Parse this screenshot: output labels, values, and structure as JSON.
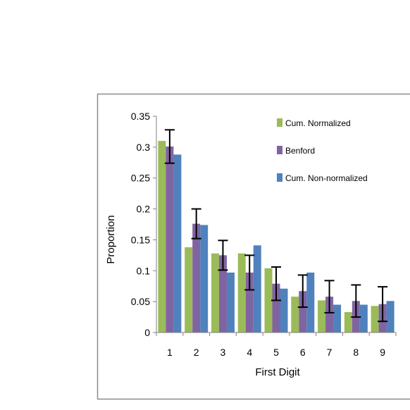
{
  "chart_data": {
    "type": "bar",
    "title": "",
    "xlabel": "First Digit",
    "ylabel": "Proportion",
    "categories": [
      "1",
      "2",
      "3",
      "4",
      "5",
      "6",
      "7",
      "8",
      "9"
    ],
    "ylim": [
      0,
      0.35
    ],
    "yticks": [
      "0",
      "0.05",
      "0.1",
      "0.15",
      "0.2",
      "0.25",
      "0.3",
      "0.35"
    ],
    "grid": false,
    "legend_position": "top-right",
    "series": [
      {
        "name": "Cum. Normalized",
        "color": "#9bbb59",
        "values": [
          0.31,
          0.138,
          0.128,
          0.128,
          0.104,
          0.058,
          0.052,
          0.033,
          0.043
        ]
      },
      {
        "name": "Benford",
        "color": "#8064a2",
        "values": [
          0.301,
          0.176,
          0.125,
          0.097,
          0.079,
          0.067,
          0.058,
          0.051,
          0.046
        ],
        "error": [
          0.027,
          0.024,
          0.024,
          0.028,
          0.027,
          0.026,
          0.026,
          0.026,
          0.028
        ]
      },
      {
        "name": "Cum. Non-normalized",
        "color": "#4f81bd",
        "values": [
          0.288,
          0.174,
          0.097,
          0.141,
          0.071,
          0.097,
          0.045,
          0.045,
          0.051
        ]
      }
    ]
  }
}
